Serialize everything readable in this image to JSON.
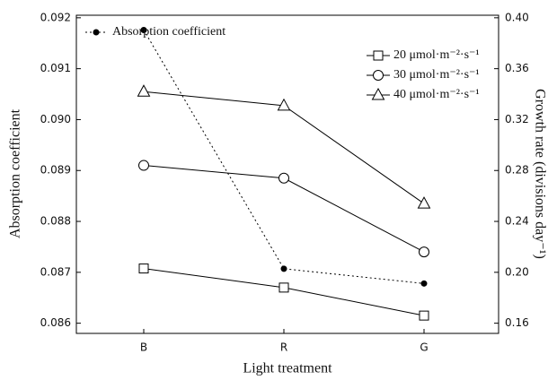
{
  "chart_data": {
    "type": "line",
    "xlabel": "Light treatment",
    "ylabel": "Absorption coefficient",
    "y2label": "Growth rate (divisions day⁻¹)",
    "categories": [
      "B",
      "R",
      "G"
    ],
    "ylim": [
      0.0858,
      0.09205
    ],
    "yticks": [
      0.086,
      0.087,
      0.088,
      0.089,
      {
        "value": 0.09,
        "label": "0.090"
      },
      0.091,
      0.092
    ],
    "y2lim": [
      0.152,
      0.402
    ],
    "y2ticks": [
      0.16,
      {
        "value": 0.2,
        "label": "0.20"
      },
      0.24,
      0.28,
      0.32,
      0.36,
      {
        "value": 0.4,
        "label": "0.40"
      }
    ],
    "series": [
      {
        "name": "Absorption coefficient",
        "color": "#000000",
        "marker": "dot",
        "dash": true,
        "values": [
          0.09176,
          0.08707,
          0.08678
        ]
      },
      {
        "name": "20 μmol·m⁻²·s⁻¹",
        "color": "#000000",
        "marker": "square",
        "axis": "y2",
        "values": [
          0.203,
          0.188,
          0.166
        ]
      },
      {
        "name": "30 μmol·m⁻²·s⁻¹",
        "color": "#000000",
        "marker": "circle",
        "axis": "y2",
        "values": [
          0.284,
          0.274,
          0.216
        ]
      },
      {
        "name": "40 μmol·m⁻²·s⁻¹",
        "color": "#000000",
        "marker": "triangle",
        "axis": "y2",
        "values": [
          0.342,
          0.331,
          0.254
        ]
      }
    ]
  }
}
